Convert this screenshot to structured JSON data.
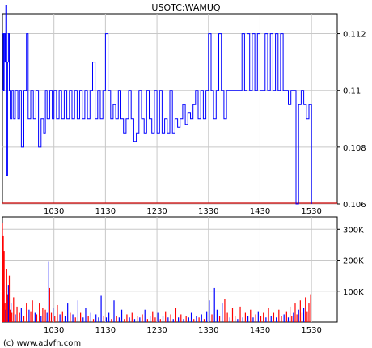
{
  "chart_data": [
    {
      "type": "line",
      "title": "USOTC:WAMUQ",
      "x_ticks": [
        "1030",
        "1130",
        "1230",
        "1330",
        "1430",
        "1530"
      ],
      "y_ticks": [
        "0.106",
        "0.108",
        "0.11",
        "0.112"
      ],
      "ylim": [
        0.106,
        0.1127
      ],
      "grid": true,
      "line_color": "#0000ff",
      "reference_line": {
        "value": 0.106,
        "color": "#cc0000"
      },
      "x_range": [
        "0930",
        "1600"
      ],
      "x": [
        "0930",
        "0931",
        "0932",
        "0933",
        "0934",
        "0935",
        "0936",
        "0937",
        "0938",
        "0939",
        "0941",
        "0943",
        "0945",
        "0948",
        "0950",
        "0952",
        "0955",
        "0958",
        "1000",
        "1003",
        "1006",
        "1009",
        "1012",
        "1015",
        "1018",
        "1020",
        "1022",
        "1025",
        "1028",
        "1030",
        "1033",
        "1036",
        "1039",
        "1042",
        "1045",
        "1048",
        "1051",
        "1054",
        "1057",
        "1100",
        "1103",
        "1106",
        "1109",
        "1112",
        "1115",
        "1118",
        "1121",
        "1124",
        "1127",
        "1130",
        "1133",
        "1136",
        "1139",
        "1142",
        "1145",
        "1148",
        "1151",
        "1154",
        "1157",
        "1200",
        "1203",
        "1206",
        "1209",
        "1212",
        "1215",
        "1218",
        "1221",
        "1224",
        "1227",
        "1230",
        "1233",
        "1236",
        "1239",
        "1242",
        "1245",
        "1248",
        "1251",
        "1254",
        "1257",
        "1300",
        "1303",
        "1306",
        "1309",
        "1312",
        "1315",
        "1318",
        "1321",
        "1324",
        "1327",
        "1330",
        "1333",
        "1336",
        "1339",
        "1342",
        "1345",
        "1348",
        "1351",
        "1354",
        "1357",
        "1400",
        "1403",
        "1406",
        "1409",
        "1412",
        "1415",
        "1418",
        "1421",
        "1424",
        "1427",
        "1430",
        "1433",
        "1436",
        "1439",
        "1442",
        "1445",
        "1448",
        "1451",
        "1454",
        "1457",
        "1500",
        "1503",
        "1506",
        "1509",
        "1512",
        "1515",
        "1518",
        "1521",
        "1524",
        "1527",
        "1530"
      ],
      "values": [
        0.112,
        0.11,
        0.112,
        0.111,
        0.113,
        0.107,
        0.111,
        0.112,
        0.11,
        0.109,
        0.11,
        0.109,
        0.11,
        0.109,
        0.11,
        0.108,
        0.11,
        0.112,
        0.109,
        0.11,
        0.109,
        0.11,
        0.108,
        0.109,
        0.1085,
        0.11,
        0.109,
        0.11,
        0.109,
        0.11,
        0.109,
        0.11,
        0.109,
        0.11,
        0.109,
        0.11,
        0.109,
        0.11,
        0.109,
        0.11,
        0.109,
        0.11,
        0.109,
        0.11,
        0.111,
        0.109,
        0.11,
        0.109,
        0.11,
        0.112,
        0.11,
        0.109,
        0.1095,
        0.109,
        0.11,
        0.109,
        0.1085,
        0.109,
        0.11,
        0.109,
        0.1082,
        0.1085,
        0.11,
        0.109,
        0.1085,
        0.11,
        0.109,
        0.1085,
        0.11,
        0.1085,
        0.11,
        0.1085,
        0.109,
        0.1085,
        0.11,
        0.1085,
        0.109,
        0.1087,
        0.109,
        0.1095,
        0.1088,
        0.1092,
        0.109,
        0.1095,
        0.11,
        0.109,
        0.11,
        0.109,
        0.11,
        0.112,
        0.11,
        0.109,
        0.11,
        0.112,
        0.11,
        0.109,
        0.11,
        0.11,
        0.11,
        0.11,
        0.11,
        0.11,
        0.112,
        0.11,
        0.112,
        0.11,
        0.112,
        0.11,
        0.112,
        0.11,
        0.11,
        0.112,
        0.11,
        0.112,
        0.11,
        0.112,
        0.11,
        0.112,
        0.11,
        0.11,
        0.1095,
        0.11,
        0.11,
        0.106,
        0.1095,
        0.11,
        0.1095,
        0.109,
        0.1095,
        0.106
      ]
    },
    {
      "type": "bar",
      "title": "",
      "x_ticks": [
        "1030",
        "1130",
        "1230",
        "1330",
        "1430",
        "1530"
      ],
      "y_ticks": [
        "100K",
        "200K",
        "300K"
      ],
      "ylim": [
        0,
        340000
      ],
      "grid": true,
      "bar_colors": {
        "up": "#0000ff",
        "down": "#ff0000"
      },
      "x_range": [
        "0930",
        "1600"
      ],
      "bars": [
        {
          "x": "0930",
          "v": 320000,
          "c": "down"
        },
        {
          "x": "0931",
          "v": 280000,
          "c": "down"
        },
        {
          "x": "0932",
          "v": 230000,
          "c": "down"
        },
        {
          "x": "0933",
          "v": 60000,
          "c": "down"
        },
        {
          "x": "0934",
          "v": 40000,
          "c": "up"
        },
        {
          "x": "0935",
          "v": 170000,
          "c": "down"
        },
        {
          "x": "0936",
          "v": 90000,
          "c": "down"
        },
        {
          "x": "0937",
          "v": 120000,
          "c": "up"
        },
        {
          "x": "0938",
          "v": 150000,
          "c": "down"
        },
        {
          "x": "0939",
          "v": 40000,
          "c": "down"
        },
        {
          "x": "0940",
          "v": 60000,
          "c": "up"
        },
        {
          "x": "0941",
          "v": 30000,
          "c": "down"
        },
        {
          "x": "0943",
          "v": 80000,
          "c": "down"
        },
        {
          "x": "0945",
          "v": 25000,
          "c": "up"
        },
        {
          "x": "0947",
          "v": 50000,
          "c": "down"
        },
        {
          "x": "0950",
          "v": 30000,
          "c": "down"
        },
        {
          "x": "0952",
          "v": 45000,
          "c": "up"
        },
        {
          "x": "0955",
          "v": 20000,
          "c": "down"
        },
        {
          "x": "0958",
          "v": 60000,
          "c": "down"
        },
        {
          "x": "1001",
          "v": 40000,
          "c": "up"
        },
        {
          "x": "1003",
          "v": 35000,
          "c": "down"
        },
        {
          "x": "1005",
          "v": 70000,
          "c": "down"
        },
        {
          "x": "1008",
          "v": 30000,
          "c": "up"
        },
        {
          "x": "1010",
          "v": 25000,
          "c": "down"
        },
        {
          "x": "1013",
          "v": 60000,
          "c": "down"
        },
        {
          "x": "1015",
          "v": 20000,
          "c": "up"
        },
        {
          "x": "1017",
          "v": 45000,
          "c": "down"
        },
        {
          "x": "1020",
          "v": 40000,
          "c": "down"
        },
        {
          "x": "1022",
          "v": 30000,
          "c": "up"
        },
        {
          "x": "1024",
          "v": 195000,
          "c": "up"
        },
        {
          "x": "1025",
          "v": 110000,
          "c": "down"
        },
        {
          "x": "1027",
          "v": 30000,
          "c": "down"
        },
        {
          "x": "1029",
          "v": 45000,
          "c": "up"
        },
        {
          "x": "1031",
          "v": 20000,
          "c": "down"
        },
        {
          "x": "1034",
          "v": 55000,
          "c": "down"
        },
        {
          "x": "1037",
          "v": 25000,
          "c": "up"
        },
        {
          "x": "1040",
          "v": 35000,
          "c": "down"
        },
        {
          "x": "1043",
          "v": 20000,
          "c": "up"
        },
        {
          "x": "1046",
          "v": 60000,
          "c": "up"
        },
        {
          "x": "1049",
          "v": 30000,
          "c": "down"
        },
        {
          "x": "1052",
          "v": 25000,
          "c": "up"
        },
        {
          "x": "1055",
          "v": 15000,
          "c": "down"
        },
        {
          "x": "1058",
          "v": 70000,
          "c": "up"
        },
        {
          "x": "1101",
          "v": 30000,
          "c": "down"
        },
        {
          "x": "1104",
          "v": 15000,
          "c": "up"
        },
        {
          "x": "1107",
          "v": 45000,
          "c": "up"
        },
        {
          "x": "1110",
          "v": 20000,
          "c": "down"
        },
        {
          "x": "1113",
          "v": 30000,
          "c": "up"
        },
        {
          "x": "1116",
          "v": 10000,
          "c": "down"
        },
        {
          "x": "1119",
          "v": 25000,
          "c": "up"
        },
        {
          "x": "1122",
          "v": 15000,
          "c": "up"
        },
        {
          "x": "1125",
          "v": 85000,
          "c": "up"
        },
        {
          "x": "1128",
          "v": 20000,
          "c": "down"
        },
        {
          "x": "1131",
          "v": 15000,
          "c": "up"
        },
        {
          "x": "1134",
          "v": 30000,
          "c": "up"
        },
        {
          "x": "1137",
          "v": 10000,
          "c": "down"
        },
        {
          "x": "1140",
          "v": 70000,
          "c": "up"
        },
        {
          "x": "1143",
          "v": 20000,
          "c": "down"
        },
        {
          "x": "1146",
          "v": 15000,
          "c": "up"
        },
        {
          "x": "1149",
          "v": 40000,
          "c": "up"
        },
        {
          "x": "1152",
          "v": 10000,
          "c": "down"
        },
        {
          "x": "1155",
          "v": 25000,
          "c": "down"
        },
        {
          "x": "1158",
          "v": 15000,
          "c": "up"
        },
        {
          "x": "1201",
          "v": 30000,
          "c": "down"
        },
        {
          "x": "1204",
          "v": 10000,
          "c": "up"
        },
        {
          "x": "1207",
          "v": 20000,
          "c": "down"
        },
        {
          "x": "1210",
          "v": 15000,
          "c": "up"
        },
        {
          "x": "1213",
          "v": 25000,
          "c": "down"
        },
        {
          "x": "1216",
          "v": 40000,
          "c": "up"
        },
        {
          "x": "1219",
          "v": 10000,
          "c": "down"
        },
        {
          "x": "1222",
          "v": 20000,
          "c": "up"
        },
        {
          "x": "1225",
          "v": 35000,
          "c": "down"
        },
        {
          "x": "1228",
          "v": 15000,
          "c": "down"
        },
        {
          "x": "1231",
          "v": 30000,
          "c": "up"
        },
        {
          "x": "1234",
          "v": 10000,
          "c": "down"
        },
        {
          "x": "1237",
          "v": 20000,
          "c": "up"
        },
        {
          "x": "1240",
          "v": 35000,
          "c": "down"
        },
        {
          "x": "1243",
          "v": 15000,
          "c": "up"
        },
        {
          "x": "1246",
          "v": 25000,
          "c": "down"
        },
        {
          "x": "1249",
          "v": 10000,
          "c": "up"
        },
        {
          "x": "1252",
          "v": 45000,
          "c": "down"
        },
        {
          "x": "1255",
          "v": 15000,
          "c": "up"
        },
        {
          "x": "1258",
          "v": 25000,
          "c": "down"
        },
        {
          "x": "1301",
          "v": 10000,
          "c": "up"
        },
        {
          "x": "1304",
          "v": 20000,
          "c": "down"
        },
        {
          "x": "1307",
          "v": 15000,
          "c": "up"
        },
        {
          "x": "1310",
          "v": 30000,
          "c": "up"
        },
        {
          "x": "1313",
          "v": 10000,
          "c": "down"
        },
        {
          "x": "1316",
          "v": 20000,
          "c": "up"
        },
        {
          "x": "1319",
          "v": 15000,
          "c": "down"
        },
        {
          "x": "1322",
          "v": 25000,
          "c": "up"
        },
        {
          "x": "1325",
          "v": 10000,
          "c": "down"
        },
        {
          "x": "1328",
          "v": 35000,
          "c": "up"
        },
        {
          "x": "1331",
          "v": 70000,
          "c": "up"
        },
        {
          "x": "1334",
          "v": 25000,
          "c": "down"
        },
        {
          "x": "1337",
          "v": 110000,
          "c": "up"
        },
        {
          "x": "1340",
          "v": 40000,
          "c": "up"
        },
        {
          "x": "1343",
          "v": 20000,
          "c": "down"
        },
        {
          "x": "1346",
          "v": 60000,
          "c": "up"
        },
        {
          "x": "1349",
          "v": 75000,
          "c": "down"
        },
        {
          "x": "1352",
          "v": 30000,
          "c": "down"
        },
        {
          "x": "1355",
          "v": 15000,
          "c": "up"
        },
        {
          "x": "1358",
          "v": 45000,
          "c": "down"
        },
        {
          "x": "1401",
          "v": 20000,
          "c": "down"
        },
        {
          "x": "1404",
          "v": 10000,
          "c": "up"
        },
        {
          "x": "1407",
          "v": 50000,
          "c": "down"
        },
        {
          "x": "1410",
          "v": 15000,
          "c": "up"
        },
        {
          "x": "1413",
          "v": 30000,
          "c": "down"
        },
        {
          "x": "1416",
          "v": 20000,
          "c": "up"
        },
        {
          "x": "1419",
          "v": 40000,
          "c": "down"
        },
        {
          "x": "1422",
          "v": 15000,
          "c": "up"
        },
        {
          "x": "1425",
          "v": 25000,
          "c": "down"
        },
        {
          "x": "1428",
          "v": 35000,
          "c": "up"
        },
        {
          "x": "1431",
          "v": 20000,
          "c": "down"
        },
        {
          "x": "1434",
          "v": 30000,
          "c": "down"
        },
        {
          "x": "1437",
          "v": 15000,
          "c": "up"
        },
        {
          "x": "1440",
          "v": 45000,
          "c": "down"
        },
        {
          "x": "1443",
          "v": 20000,
          "c": "up"
        },
        {
          "x": "1446",
          "v": 30000,
          "c": "down"
        },
        {
          "x": "1449",
          "v": 15000,
          "c": "up"
        },
        {
          "x": "1452",
          "v": 40000,
          "c": "down"
        },
        {
          "x": "1455",
          "v": 20000,
          "c": "down"
        },
        {
          "x": "1458",
          "v": 25000,
          "c": "up"
        },
        {
          "x": "1501",
          "v": 35000,
          "c": "down"
        },
        {
          "x": "1503",
          "v": 15000,
          "c": "up"
        },
        {
          "x": "1505",
          "v": 50000,
          "c": "down"
        },
        {
          "x": "1507",
          "v": 20000,
          "c": "down"
        },
        {
          "x": "1509",
          "v": 30000,
          "c": "up"
        },
        {
          "x": "1511",
          "v": 60000,
          "c": "down"
        },
        {
          "x": "1513",
          "v": 25000,
          "c": "down"
        },
        {
          "x": "1515",
          "v": 40000,
          "c": "up"
        },
        {
          "x": "1517",
          "v": 70000,
          "c": "down"
        },
        {
          "x": "1519",
          "v": 30000,
          "c": "down"
        },
        {
          "x": "1521",
          "v": 45000,
          "c": "up"
        },
        {
          "x": "1523",
          "v": 80000,
          "c": "down"
        },
        {
          "x": "1525",
          "v": 35000,
          "c": "down"
        },
        {
          "x": "1527",
          "v": 60000,
          "c": "down"
        },
        {
          "x": "1529",
          "v": 90000,
          "c": "down"
        }
      ]
    }
  ],
  "footer": {
    "credit": "(c) www.advfn.com"
  }
}
